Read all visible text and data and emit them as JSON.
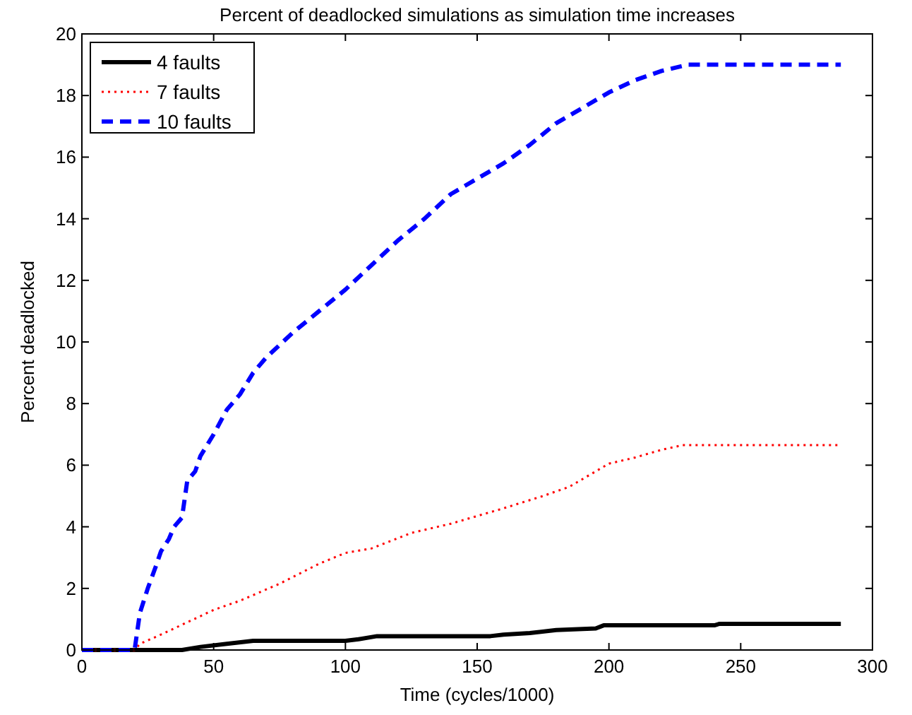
{
  "chart_data": {
    "type": "line",
    "title": "Percent of deadlocked simulations as simulation time increases",
    "xlabel": "Time (cycles/1000)",
    "ylabel": "Percent deadlocked",
    "xlim": [
      0,
      300
    ],
    "xticks": [
      0,
      50,
      100,
      150,
      200,
      250,
      300
    ],
    "ylim": [
      0,
      20
    ],
    "yticks": [
      0,
      2,
      4,
      6,
      8,
      10,
      12,
      14,
      16,
      18,
      20
    ],
    "legend": "top left",
    "grid": false,
    "series": [
      {
        "name": "4 faults",
        "color": "#000000",
        "line_style": "solid",
        "x": [
          0,
          38,
          45,
          55,
          65,
          100,
          105,
          112,
          155,
          160,
          170,
          180,
          195,
          198,
          240,
          242,
          288
        ],
        "values": [
          0,
          0,
          0.1,
          0.2,
          0.3,
          0.3,
          0.35,
          0.45,
          0.45,
          0.5,
          0.55,
          0.65,
          0.7,
          0.8,
          0.8,
          0.85,
          0.85
        ]
      },
      {
        "name": "7 faults",
        "color": "#ff0000",
        "line_style": "dotted",
        "x": [
          0,
          20,
          22,
          30,
          40,
          50,
          60,
          75,
          90,
          100,
          110,
          125,
          140,
          150,
          160,
          175,
          185,
          200,
          210,
          220,
          228,
          288
        ],
        "values": [
          0,
          0,
          0.2,
          0.5,
          0.9,
          1.3,
          1.6,
          2.15,
          2.8,
          3.15,
          3.3,
          3.8,
          4.1,
          4.35,
          4.6,
          5,
          5.3,
          6.05,
          6.25,
          6.5,
          6.65,
          6.65
        ]
      },
      {
        "name": "10 faults",
        "color": "#0000ff",
        "line_style": "dashed",
        "x": [
          0,
          20,
          22,
          25,
          28,
          30,
          33,
          35,
          38,
          40,
          43,
          45,
          50,
          55,
          60,
          65,
          70,
          75,
          80,
          90,
          100,
          110,
          120,
          130,
          140,
          150,
          160,
          170,
          180,
          190,
          200,
          210,
          220,
          230,
          288
        ],
        "values": [
          0,
          0,
          1.2,
          2,
          2.7,
          3.2,
          3.6,
          4,
          4.3,
          5.5,
          5.8,
          6.3,
          7,
          7.8,
          8.3,
          9,
          9.5,
          9.9,
          10.3,
          11,
          11.7,
          12.5,
          13.3,
          14,
          14.8,
          15.3,
          15.8,
          16.4,
          17.1,
          17.6,
          18.1,
          18.5,
          18.8,
          19,
          19
        ]
      }
    ]
  }
}
